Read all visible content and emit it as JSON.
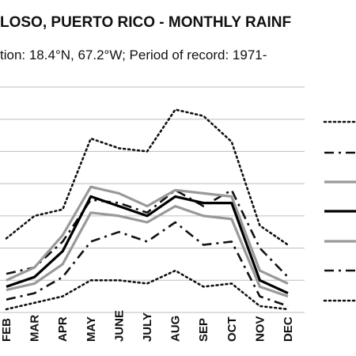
{
  "chart_data": {
    "type": "line",
    "title": "LOSO, PUERTO RICO - MONTHLY RAINF",
    "subtitle": "tion: 18.4°N, 67.2°W; Period of record: 1971-",
    "categories": [
      "FEB",
      "MAR",
      "APR",
      "MAY",
      "JUNE",
      "JULY",
      "AUG",
      "SEP",
      "OCT",
      "NOV",
      "DEC"
    ],
    "ylim": [
      0,
      7
    ],
    "grid": true,
    "legend": {
      "placement": "right"
    },
    "series": [
      {
        "style": "dotted",
        "color": "#111111",
        "values": [
          2.3,
          3.0,
          3.2,
          5.4,
          5.1,
          5.0,
          6.3,
          6.1,
          5.3,
          2.7,
          2.1
        ]
      },
      {
        "style": "dashdot",
        "color": "#111111",
        "values": [
          1.2,
          1.4,
          2.2,
          3.5,
          3.4,
          3.1,
          3.8,
          3.3,
          3.8,
          2.0,
          1.1
        ]
      },
      {
        "style": "solid-thick",
        "color": "#999999",
        "values": [
          1.0,
          1.4,
          2.4,
          3.9,
          3.7,
          3.3,
          3.8,
          3.7,
          3.6,
          1.3,
          0.9
        ]
      },
      {
        "style": "solid-thick",
        "color": "#000000",
        "values": [
          0.8,
          1.1,
          1.9,
          3.6,
          3.3,
          3.0,
          3.6,
          3.4,
          3.4,
          1.0,
          0.6
        ]
      },
      {
        "style": "solid-thick",
        "color": "#999999",
        "values": [
          0.7,
          0.9,
          1.5,
          3.1,
          3.0,
          2.8,
          3.3,
          3.0,
          2.9,
          0.8,
          0.5
        ]
      },
      {
        "style": "dashdot",
        "color": "#111111",
        "values": [
          0.4,
          0.6,
          1.1,
          2.2,
          2.5,
          2.2,
          2.8,
          2.1,
          2.2,
          0.5,
          0.2
        ]
      },
      {
        "style": "dotted",
        "color": "#111111",
        "values": [
          0.1,
          0.3,
          0.5,
          1.0,
          1.0,
          0.9,
          1.3,
          0.8,
          0.9,
          0.2,
          0.1
        ]
      }
    ]
  }
}
